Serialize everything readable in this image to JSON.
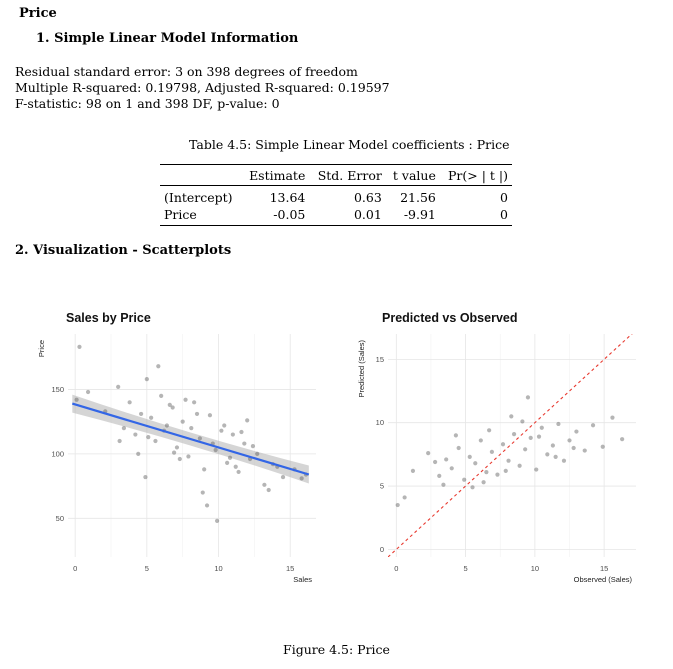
{
  "doc": {
    "heading": "Price",
    "section1": "1.  Simple Linear Model Information",
    "stats": [
      "Residual standard error: 3 on 398 degrees of freedom",
      "Multiple R-squared: 0.19798, Adjusted R-squared: 0.19597",
      "F-statistic: 98 on 1 and 398 DF, p-value: 0"
    ],
    "table_caption": "Table 4.5: Simple Linear Model coefficients : Price",
    "table": {
      "headers": [
        "",
        "Estimate",
        "Std. Error",
        "t value",
        "Pr(> | t |)"
      ],
      "rows": [
        [
          "(Intercept)",
          "13.64",
          "0.63",
          "21.56",
          "0"
        ],
        [
          "Price",
          "-0.05",
          "0.01",
          "-9.91",
          "0"
        ]
      ]
    },
    "section2": "2.  Visualization - Scatterplots",
    "figure_caption": "Figure 4.5: Price"
  },
  "chart_data": [
    {
      "type": "scatter",
      "title": "Sales by Price",
      "xlabel": "Sales",
      "ylabel": "Price",
      "xlim": [
        -0.5,
        16.8
      ],
      "ylim": [
        20,
        193
      ],
      "x_ticks": [
        "0",
        "5",
        "10",
        "15"
      ],
      "y_ticks": [
        "50",
        "100",
        "150"
      ],
      "grid": true,
      "point_color": "#5a5a5a",
      "points": {
        "x": [
          0.3,
          0.9,
          2.1,
          3.0,
          3.4,
          3.8,
          4.2,
          4.6,
          5.0,
          5.3,
          5.6,
          6.0,
          6.4,
          6.8,
          7.1,
          7.5,
          7.9,
          8.3,
          8.7,
          9.0,
          9.4,
          9.8,
          10.2,
          10.6,
          11.0,
          11.4,
          11.8,
          12.2,
          12.7,
          13.2,
          13.8,
          14.5,
          15.3,
          16.1,
          4.4,
          5.8,
          6.6,
          7.3,
          8.1,
          8.9,
          9.6,
          10.4,
          11.2,
          12.4,
          3.1,
          4.9,
          6.2,
          7.7,
          9.2,
          10.8,
          12.0,
          13.5,
          5.1,
          6.9,
          8.5,
          9.9,
          11.6,
          14.1,
          15.8,
          0.1
        ],
        "y": [
          183,
          148,
          133,
          152,
          120,
          140,
          115,
          131,
          158,
          128,
          110,
          145,
          122,
          136,
          105,
          125,
          98,
          140,
          112,
          88,
          130,
          103,
          118,
          93,
          115,
          86,
          108,
          96,
          100,
          76,
          92,
          82,
          88,
          84,
          100,
          168,
          138,
          96,
          120,
          70,
          108,
          122,
          90,
          106,
          110,
          82,
          118,
          142,
          60,
          97,
          126,
          72,
          113,
          101,
          131,
          48,
          117,
          90,
          81,
          142
        ]
      },
      "fit_line": {
        "x": [
          -0.2,
          16.3
        ],
        "y": [
          139,
          84
        ]
      },
      "fit_color": "#3366e6"
    },
    {
      "type": "scatter",
      "title": "Predicted vs Observed",
      "xlabel": "Observed (Sales)",
      "ylabel": "Predicted (Sales)",
      "xlim": [
        -0.6,
        17.3
      ],
      "ylim": [
        -0.6,
        17.0
      ],
      "x_ticks": [
        "0",
        "5",
        "10",
        "15"
      ],
      "y_ticks": [
        "0",
        "5",
        "10",
        "15"
      ],
      "grid": true,
      "point_color": "#5a5a5a",
      "points": {
        "x": [
          0.1,
          0.6,
          1.2,
          2.3,
          3.1,
          3.6,
          4.0,
          4.5,
          4.9,
          5.3,
          5.7,
          6.1,
          6.5,
          6.9,
          7.3,
          7.7,
          8.1,
          8.5,
          8.9,
          9.3,
          9.7,
          10.1,
          10.5,
          10.9,
          11.3,
          11.7,
          12.1,
          12.5,
          13.0,
          13.6,
          14.2,
          14.9,
          15.6,
          16.3,
          4.3,
          5.5,
          6.7,
          7.9,
          9.1,
          10.3,
          11.5,
          3.4,
          8.3,
          12.8,
          2.8,
          6.3,
          9.5
        ],
        "y": [
          3.5,
          4.1,
          6.2,
          7.6,
          5.8,
          7.1,
          6.4,
          8.0,
          5.5,
          7.3,
          6.8,
          8.6,
          6.1,
          7.7,
          5.9,
          8.3,
          7.0,
          9.1,
          6.6,
          7.9,
          8.8,
          6.3,
          9.6,
          7.5,
          8.2,
          9.9,
          7.0,
          8.6,
          9.3,
          7.8,
          9.8,
          8.1,
          10.4,
          8.7,
          9.0,
          4.9,
          9.4,
          6.2,
          10.1,
          8.9,
          7.3,
          5.1,
          10.5,
          8.0,
          6.9,
          5.3,
          12.0
        ]
      },
      "ref_line": {
        "x": [
          -0.6,
          17.3
        ],
        "y": [
          -0.6,
          17.3
        ]
      },
      "ref_color": "#e83a30"
    }
  ]
}
